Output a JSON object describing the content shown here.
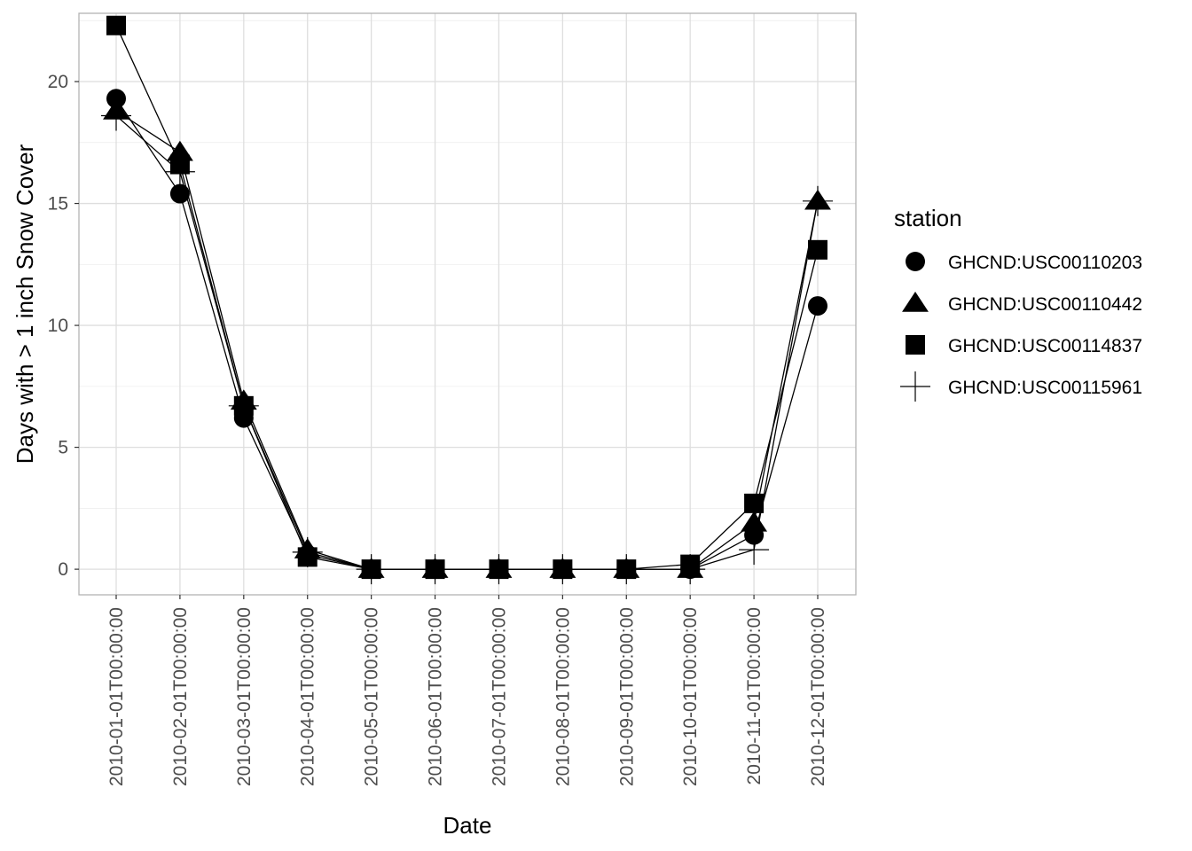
{
  "chart_data": {
    "type": "line",
    "xlabel": "Date",
    "ylabel": "Days with > 1 inch Snow Cover",
    "categories": [
      "2010-01-01T00:00:00",
      "2010-02-01T00:00:00",
      "2010-03-01T00:00:00",
      "2010-04-01T00:00:00",
      "2010-05-01T00:00:00",
      "2010-06-01T00:00:00",
      "2010-07-01T00:00:00",
      "2010-08-01T00:00:00",
      "2010-09-01T00:00:00",
      "2010-10-01T00:00:00",
      "2010-11-01T00:00:00",
      "2010-12-01T00:00:00"
    ],
    "ylim": [
      -1.05,
      22.8
    ],
    "yticks": [
      0,
      5,
      10,
      15,
      20
    ],
    "ytick_labels": [
      "0",
      "5",
      "10",
      "15",
      "20"
    ],
    "grid": true,
    "legend": {
      "title": "station",
      "position": "right"
    },
    "series": [
      {
        "name": "GHCND:USC00110203",
        "shape": "circle",
        "values": [
          19.3,
          15.4,
          6.2,
          0.6,
          0,
          0,
          0,
          0,
          0,
          0,
          1.4,
          10.8
        ]
      },
      {
        "name": "GHCND:USC00110442",
        "shape": "triangle",
        "values": [
          18.8,
          17.1,
          6.9,
          0.8,
          0,
          0,
          0,
          0,
          0,
          0,
          1.9,
          15.1
        ]
      },
      {
        "name": "GHCND:USC00114837",
        "shape": "square",
        "values": [
          22.3,
          16.6,
          6.7,
          0.5,
          0,
          0,
          0,
          0,
          0,
          0.2,
          2.7,
          13.1
        ]
      },
      {
        "name": "GHCND:USC00115961",
        "shape": "cross",
        "values": [
          18.6,
          16.3,
          6.7,
          0.7,
          0,
          0,
          0,
          0,
          0,
          0,
          0.8,
          15.1
        ]
      }
    ],
    "colors": {
      "panel_border": "#b3b3b3",
      "grid_major": "#dedede",
      "grid_minor": "#ececec",
      "marks": "#000000",
      "tick_text": "#4d4d4d"
    }
  }
}
